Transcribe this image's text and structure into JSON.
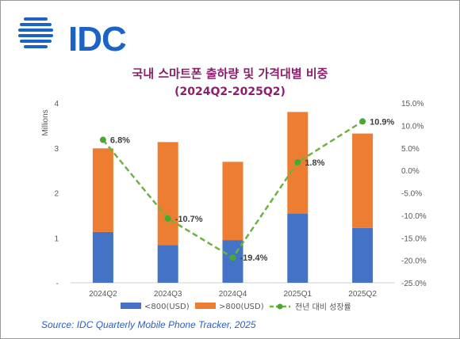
{
  "brand": {
    "logo_text": "IDC",
    "color": "#1c63c7"
  },
  "source": "Source: IDC Quarterly Mobile Phone Tracker, 2025",
  "chart_data": {
    "type": "bar",
    "stacked": true,
    "title": "국내 스마트폰 출하량 및 가격대별 비중",
    "subtitle": "(2024Q2-2025Q2)",
    "categories": [
      "2024Q2",
      "2024Q3",
      "2024Q4",
      "2025Q1",
      "2025Q2"
    ],
    "ylabel": "Millions",
    "ylim": [
      0,
      4
    ],
    "yticks": [
      0,
      1,
      2,
      3,
      4
    ],
    "ytick_labels": [
      "-",
      "1",
      "2",
      "3",
      "4"
    ],
    "y2lim": [
      -25,
      15
    ],
    "y2ticks": [
      15,
      10,
      5,
      0,
      -5,
      -10,
      -15,
      -20,
      -25
    ],
    "y2tick_labels": [
      "15.0%",
      "10.0%",
      "5.0%",
      "0.0%",
      "-5.0%",
      "-10.0%",
      "-15.0%",
      "-20.0%",
      "-25.0%"
    ],
    "series": [
      {
        "name": "<800(USD)",
        "kind": "bar",
        "color": "#4472c4",
        "values": [
          1.13,
          0.84,
          0.95,
          1.54,
          1.22
        ]
      },
      {
        "name": ">800(USD)",
        "kind": "bar",
        "color": "#ed7d31",
        "values": [
          1.86,
          2.29,
          1.74,
          2.26,
          2.1
        ]
      },
      {
        "name": "전년 대비 성장률",
        "kind": "line",
        "axis": "secondary",
        "color": "#6db33f",
        "values": [
          6.8,
          -10.7,
          -19.4,
          1.8,
          10.9
        ],
        "labels": [
          "6.8%",
          "-10.7%",
          "-19.4%",
          "1.8%",
          "10.9%"
        ]
      }
    ],
    "legend_position": "bottom",
    "grid": false
  }
}
